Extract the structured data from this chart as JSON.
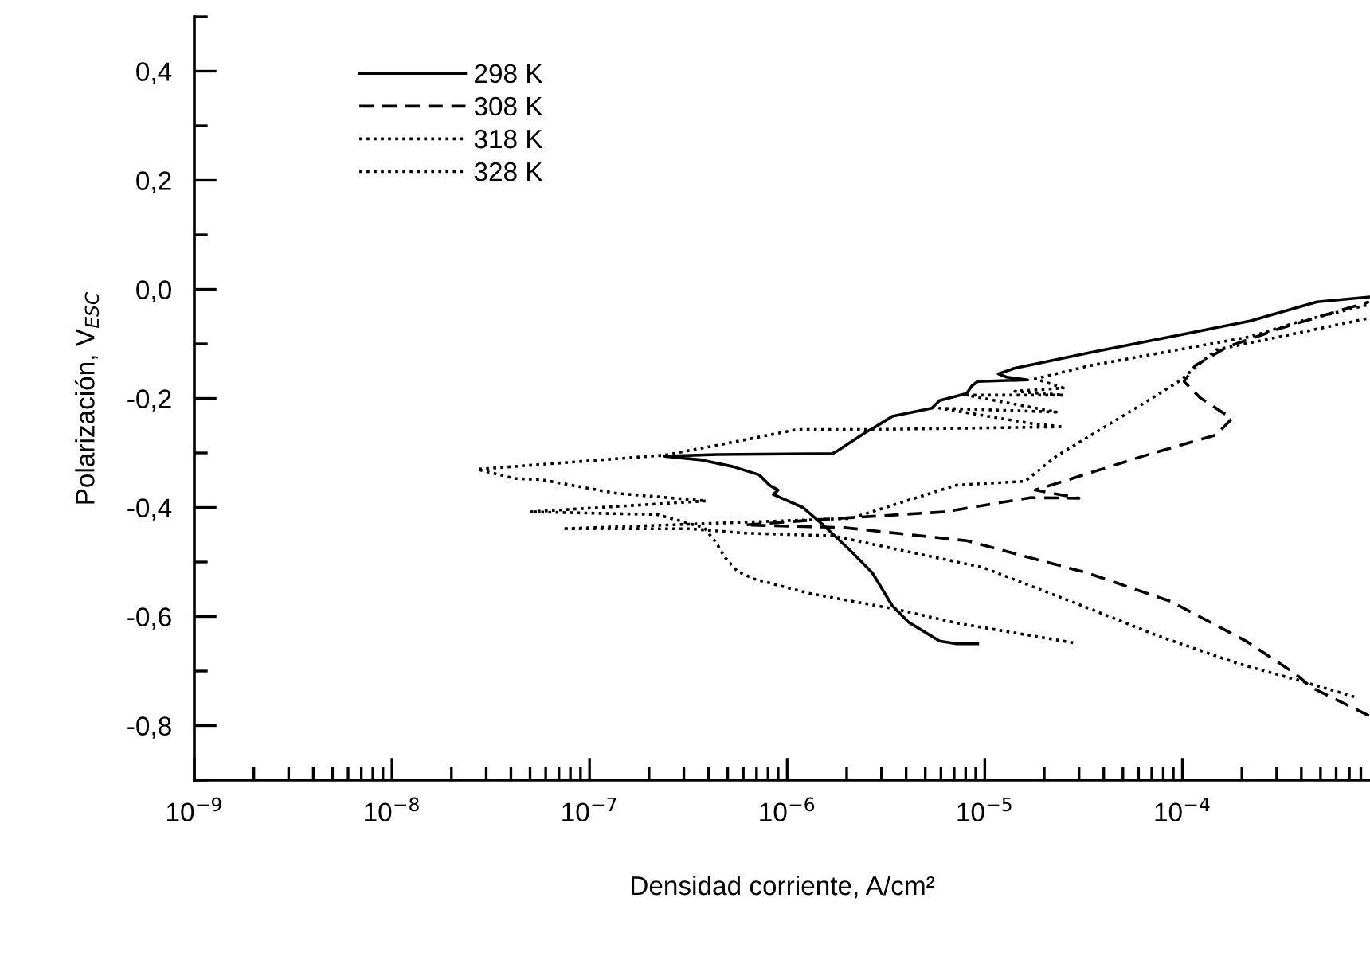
{
  "chart_data": {
    "type": "line",
    "xlabel": "Densidad corriente, A/cm²",
    "ylabel": "Polarización, V$_{ESC}$",
    "log": "x",
    "legend": "top left",
    "grid": false,
    "xlim": [
      1e-09,
      0.00089
    ],
    "xticks": [
      {
        "value": 1e-09,
        "label": "10$^{−9}$"
      },
      {
        "value": 1e-08,
        "label": "10$^{−8}$"
      },
      {
        "value": 1e-07,
        "label": "10$^{−7}$"
      },
      {
        "value": 1e-06,
        "label": "10$^{−6}$"
      },
      {
        "value": 1e-05,
        "label": "10$^{−5}$"
      },
      {
        "value": 0.0001,
        "label": "10$^{−4}$"
      }
    ],
    "ylim": [
      -0.9,
      0.5
    ],
    "yticks": [
      {
        "value": -0.9,
        "label": null
      },
      {
        "value": -0.8,
        "label": "-0,8"
      },
      {
        "value": -0.7,
        "label": null
      },
      {
        "value": -0.6,
        "label": "-0,6"
      },
      {
        "value": -0.5,
        "label": null
      },
      {
        "value": -0.4,
        "label": "-0,4"
      },
      {
        "value": -0.3,
        "label": null
      },
      {
        "value": -0.2,
        "label": "-0,2"
      },
      {
        "value": -0.1,
        "label": null
      },
      {
        "value": 0.0,
        "label": "0,0"
      },
      {
        "value": 0.1,
        "label": null
      },
      {
        "value": 0.2,
        "label": "0,2"
      },
      {
        "value": 0.3,
        "label": null
      },
      {
        "value": 0.4,
        "label": "0,4"
      },
      {
        "value": 0.5,
        "label": null
      }
    ],
    "series": [
      {
        "name": "298 K",
        "color": "#000000",
        "line_style": "solid",
        "x": [
          9.2e-06,
          7.2e-06,
          5.9e-06,
          4.1e-06,
          3.4e-06,
          2.7e-06,
          2.1e-06,
          1.5e-06,
          1.2e-06,
          8.5e-07,
          9e-07,
          8.2e-07,
          7.2e-07,
          5.3e-07,
          3.7e-07,
          2.4e-07,
          4.4e-07,
          1.7e-06,
          1.8e-06,
          2.5e-06,
          2.8e-06,
          3.4e-06,
          5.4e-06,
          5.9e-06,
          8.1e-06,
          8.6e-06,
          9.2e-06,
          1.65e-05,
          1.29e-05,
          1.17e-05,
          1.41e-05,
          3.4e-05,
          9.6e-05,
          0.00022,
          0.00048,
          0.00088
        ],
        "values": [
          -0.65,
          -0.65,
          -0.645,
          -0.61,
          -0.58,
          -0.52,
          -0.48,
          -0.43,
          -0.4,
          -0.376,
          -0.368,
          -0.36,
          -0.34,
          -0.325,
          -0.313,
          -0.306,
          -0.303,
          -0.301,
          -0.296,
          -0.262,
          -0.252,
          -0.233,
          -0.218,
          -0.204,
          -0.191,
          -0.177,
          -0.169,
          -0.166,
          -0.161,
          -0.155,
          -0.145,
          -0.116,
          -0.084,
          -0.058,
          -0.023,
          -0.014
        ]
      },
      {
        "name": "308 K",
        "color": "#000000",
        "line_style": "dashed",
        "x": [
          0.00088,
          0.00045,
          0.00037,
          0.00021,
          8.7e-05,
          3.3e-05,
          8.1e-06,
          1.95e-06,
          6.1e-07,
          1.5e-06,
          6.3e-06,
          1.7e-05,
          3e-05,
          1.8e-05,
          2.5e-05,
          6.3e-05,
          0.000148,
          0.000178,
          0.000123,
          0.000102,
          0.000116,
          0.000168,
          0.00031,
          0.00088
        ],
        "values": [
          -0.782,
          -0.73,
          -0.704,
          -0.645,
          -0.572,
          -0.52,
          -0.461,
          -0.437,
          -0.432,
          -0.422,
          -0.408,
          -0.382,
          -0.383,
          -0.368,
          -0.352,
          -0.306,
          -0.267,
          -0.237,
          -0.199,
          -0.169,
          -0.14,
          -0.106,
          -0.072,
          -0.023
        ]
      },
      {
        "name": "318 K",
        "color": "#000000",
        "line_style": "dotted",
        "x": [
          2.8e-05,
          7.2e-06,
          3.6e-06,
          1.27e-06,
          6.8e-07,
          5.6e-07,
          4.8e-07,
          4.4e-07,
          3.8e-07,
          2.2e-07,
          5e-08,
          3.9e-07,
          1.36e-07,
          5.7e-08,
          4.2e-08,
          2.7e-08,
          2.4e-07,
          4.4e-07,
          1.12e-06,
          2.7e-06,
          2.5e-05,
          1.8e-05,
          5.9e-06,
          2.3e-05,
          8.1e-06,
          2.5e-05,
          1.42e-05,
          2.5e-05,
          1.8e-05,
          3.4e-05,
          0.00022,
          0.0004,
          0.00088
        ],
        "values": [
          -0.648,
          -0.612,
          -0.587,
          -0.557,
          -0.531,
          -0.517,
          -0.49,
          -0.466,
          -0.437,
          -0.413,
          -0.408,
          -0.388,
          -0.374,
          -0.349,
          -0.347,
          -0.33,
          -0.304,
          -0.286,
          -0.257,
          -0.257,
          -0.252,
          -0.247,
          -0.218,
          -0.225,
          -0.194,
          -0.194,
          -0.187,
          -0.181,
          -0.164,
          -0.14,
          -0.087,
          -0.058,
          -0.028
        ]
      },
      {
        "name": "328 K",
        "color": "#000000",
        "line_style": "dotted",
        "x": [
          0.00074,
          0.00037,
          0.00019,
          7.6e-05,
          3e-05,
          9.8e-06,
          1.7e-06,
          6.1e-07,
          3.2e-07,
          7.3e-08,
          2.1e-06,
          7.2e-06,
          1.6e-05,
          2.3e-05,
          5.8e-05,
          9.6e-05,
          0.000148,
          0.00088
        ],
        "values": [
          -0.747,
          -0.715,
          -0.686,
          -0.636,
          -0.578,
          -0.51,
          -0.452,
          -0.447,
          -0.439,
          -0.439,
          -0.42,
          -0.359,
          -0.352,
          -0.306,
          -0.218,
          -0.169,
          -0.111,
          -0.053
        ]
      }
    ]
  }
}
